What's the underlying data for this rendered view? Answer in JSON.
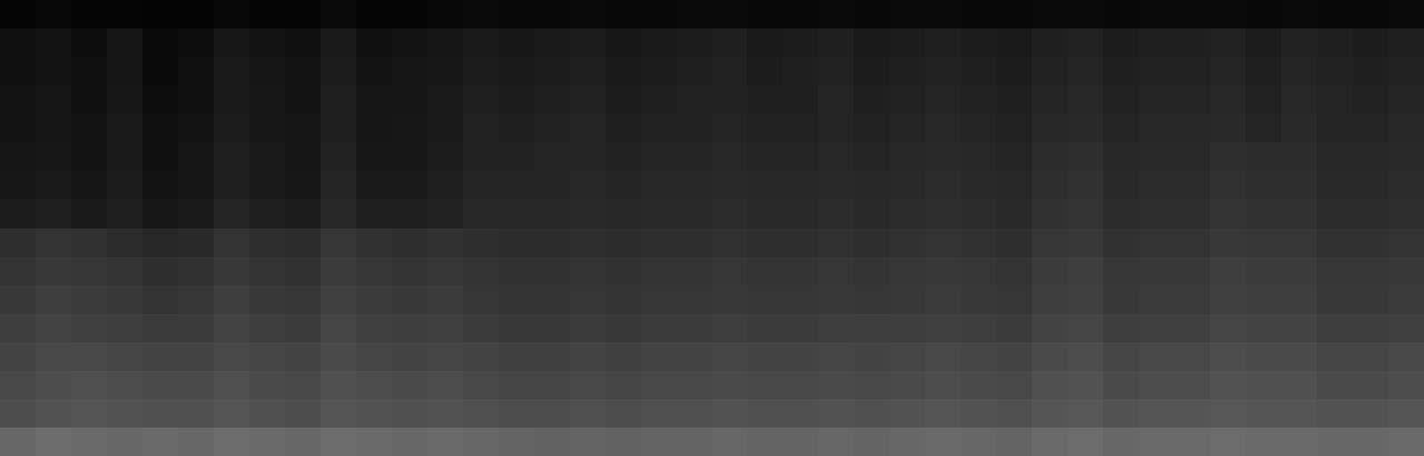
{
  "chart_data": {
    "type": "heatmap",
    "tick_labels": false,
    "grid": false,
    "colors": [
      "#000000",
      "#9a9a9a"
    ],
    "zlim": [
      0,
      60
    ],
    "cells": [
      [
        2,
        3,
        2,
        2,
        1,
        1,
        3,
        2,
        2,
        4,
        2,
        2,
        3,
        4,
        3,
        3,
        4,
        3,
        3,
        4,
        4,
        3,
        3,
        4,
        3,
        4,
        4,
        3,
        3,
        4,
        4,
        3,
        4,
        4,
        4,
        3,
        4,
        3,
        3,
        4
      ],
      [
        6,
        7,
        5,
        8,
        4,
        5,
        9,
        7,
        6,
        10,
        6,
        7,
        8,
        10,
        9,
        10,
        11,
        9,
        10,
        11,
        12,
        10,
        11,
        12,
        10,
        11,
        12,
        11,
        10,
        12,
        13,
        11,
        12,
        12,
        13,
        11,
        13,
        12,
        11,
        12
      ],
      [
        6,
        7,
        6,
        8,
        4,
        6,
        10,
        8,
        7,
        11,
        7,
        8,
        9,
        11,
        10,
        11,
        12,
        10,
        11,
        12,
        13,
        11,
        12,
        13,
        11,
        12,
        13,
        12,
        11,
        13,
        14,
        12,
        13,
        13,
        14,
        12,
        14,
        13,
        12,
        13
      ],
      [
        7,
        8,
        6,
        9,
        5,
        6,
        10,
        9,
        7,
        12,
        8,
        8,
        10,
        12,
        11,
        12,
        13,
        11,
        12,
        13,
        13,
        12,
        12,
        14,
        12,
        13,
        14,
        13,
        12,
        14,
        15,
        13,
        14,
        14,
        15,
        13,
        15,
        14,
        13,
        14
      ],
      [
        7,
        8,
        7,
        10,
        6,
        7,
        11,
        9,
        8,
        12,
        8,
        9,
        10,
        13,
        12,
        13,
        14,
        12,
        13,
        13,
        14,
        13,
        13,
        14,
        13,
        14,
        15,
        14,
        13,
        15,
        16,
        14,
        15,
        15,
        16,
        14,
        16,
        14,
        14,
        15
      ],
      [
        8,
        9,
        7,
        10,
        6,
        8,
        12,
        10,
        8,
        13,
        9,
        9,
        11,
        13,
        13,
        14,
        14,
        13,
        14,
        14,
        15,
        14,
        14,
        15,
        14,
        15,
        16,
        15,
        14,
        17,
        18,
        15,
        16,
        16,
        18,
        17,
        17,
        15,
        15,
        16
      ],
      [
        9,
        10,
        8,
        11,
        7,
        8,
        12,
        10,
        9,
        14,
        10,
        10,
        12,
        14,
        14,
        14,
        15,
        14,
        15,
        15,
        16,
        15,
        15,
        16,
        15,
        16,
        17,
        16,
        15,
        18,
        19,
        16,
        17,
        17,
        19,
        18,
        18,
        16,
        16,
        17
      ],
      [
        11,
        12,
        10,
        12,
        9,
        10,
        14,
        12,
        11,
        15,
        12,
        12,
        13,
        15,
        15,
        15,
        16,
        15,
        16,
        16,
        17,
        16,
        16,
        17,
        16,
        17,
        18,
        17,
        16,
        19,
        20,
        17,
        18,
        18,
        20,
        19,
        19,
        17,
        17,
        18
      ],
      [
        18,
        20,
        19,
        17,
        15,
        16,
        20,
        18,
        17,
        21,
        19,
        18,
        19,
        18,
        17,
        17,
        18,
        17,
        18,
        18,
        19,
        18,
        18,
        19,
        18,
        19,
        20,
        19,
        18,
        21,
        22,
        19,
        20,
        20,
        22,
        21,
        21,
        19,
        19,
        20
      ],
      [
        20,
        22,
        21,
        20,
        18,
        19,
        22,
        20,
        19,
        23,
        21,
        20,
        21,
        20,
        19,
        19,
        20,
        19,
        20,
        20,
        21,
        20,
        20,
        21,
        20,
        21,
        22,
        21,
        20,
        23,
        24,
        21,
        22,
        22,
        24,
        23,
        23,
        21,
        21,
        22
      ],
      [
        22,
        24,
        23,
        22,
        20,
        21,
        24,
        22,
        21,
        25,
        23,
        22,
        23,
        21,
        20,
        20,
        21,
        20,
        21,
        21,
        22,
        21,
        21,
        22,
        21,
        22,
        23,
        22,
        21,
        24,
        25,
        22,
        23,
        23,
        25,
        24,
        24,
        22,
        22,
        23
      ],
      [
        24,
        26,
        25,
        24,
        23,
        23,
        26,
        24,
        23,
        27,
        25,
        24,
        25,
        23,
        22,
        22,
        23,
        22,
        23,
        23,
        24,
        23,
        23,
        24,
        24,
        24,
        25,
        24,
        23,
        26,
        27,
        24,
        25,
        25,
        27,
        26,
        26,
        24,
        24,
        25
      ],
      [
        26,
        28,
        28,
        27,
        26,
        26,
        28,
        27,
        26,
        29,
        27,
        26,
        27,
        26,
        25,
        25,
        26,
        25,
        26,
        26,
        27,
        26,
        26,
        27,
        26,
        27,
        28,
        27,
        26,
        29,
        30,
        27,
        28,
        28,
        30,
        29,
        29,
        27,
        27,
        28
      ],
      [
        28,
        30,
        31,
        30,
        29,
        29,
        31,
        29,
        28,
        31,
        30,
        29,
        30,
        28,
        27,
        27,
        28,
        27,
        28,
        28,
        29,
        28,
        28,
        29,
        28,
        29,
        30,
        29,
        28,
        31,
        32,
        29,
        30,
        30,
        32,
        31,
        31,
        29,
        29,
        30
      ],
      [
        30,
        32,
        33,
        32,
        31,
        31,
        33,
        31,
        30,
        33,
        32,
        31,
        32,
        31,
        30,
        30,
        31,
        30,
        31,
        31,
        32,
        31,
        31,
        32,
        31,
        32,
        33,
        32,
        31,
        33,
        34,
        32,
        33,
        33,
        34,
        33,
        33,
        32,
        32,
        33
      ],
      [
        40,
        42,
        41,
        40,
        41,
        40,
        42,
        41,
        40,
        42,
        41,
        40,
        41,
        40,
        39,
        38,
        39,
        38,
        39,
        39,
        40,
        39,
        39,
        40,
        39,
        40,
        41,
        40,
        39,
        41,
        42,
        40,
        41,
        41,
        42,
        41,
        41,
        40,
        40,
        41
      ]
    ]
  }
}
